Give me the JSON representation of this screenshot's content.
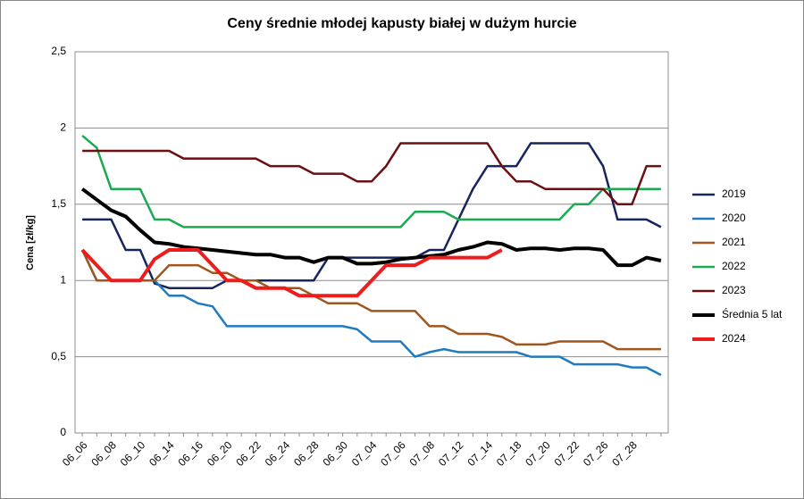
{
  "chart_data": {
    "type": "line",
    "title": "Ceny średnie młodej kapusty białej w dużym hurcie",
    "y_label": "Cena [zł/kg]",
    "categories": [
      "06_06",
      null,
      "06_08",
      null,
      "06_10",
      null,
      "06_14",
      null,
      "06_16",
      null,
      "06_20",
      null,
      "06_22",
      null,
      "06_24",
      null,
      "06_28",
      null,
      "06_30",
      null,
      "07_04",
      null,
      "07_06",
      null,
      "07_08",
      null,
      "07_12",
      null,
      "07_14",
      null,
      "07_18",
      null,
      "07_20",
      null,
      "07_22",
      null,
      "07_26",
      null,
      "07_28",
      null,
      null
    ],
    "ylim": [
      0,
      2.5
    ],
    "yticks": [
      0,
      {
        "value": 0.5,
        "label": "0,5"
      },
      1,
      {
        "value": 1.5,
        "label": "1,5"
      },
      2,
      {
        "value": 2.5,
        "label": "2,5"
      }
    ],
    "grid": true,
    "legend": "right",
    "series": [
      {
        "name": "2019",
        "color": "#17255e",
        "width": 2.5,
        "values": [
          1.4,
          1.4,
          1.4,
          1.2,
          1.2,
          0.98,
          0.95,
          0.95,
          0.95,
          0.95,
          1.0,
          1.0,
          1.0,
          1.0,
          1.0,
          1.0,
          1.0,
          1.15,
          1.15,
          1.15,
          1.15,
          1.15,
          1.15,
          1.15,
          1.2,
          1.2,
          1.4,
          1.6,
          1.75,
          1.75,
          1.75,
          1.9,
          1.9,
          1.9,
          1.9,
          1.9,
          1.75,
          1.4,
          1.4,
          1.4,
          1.35
        ]
      },
      {
        "name": "2020",
        "color": "#1f7bbf",
        "width": 2.5,
        "values": [
          1.2,
          1.0,
          1.0,
          1.0,
          1.0,
          1.0,
          0.9,
          0.9,
          0.85,
          0.83,
          0.7,
          0.7,
          0.7,
          0.7,
          0.7,
          0.7,
          0.7,
          0.7,
          0.7,
          0.68,
          0.6,
          0.6,
          0.6,
          0.5,
          0.53,
          0.55,
          0.53,
          0.53,
          0.53,
          0.53,
          0.53,
          0.5,
          0.5,
          0.5,
          0.45,
          0.45,
          0.45,
          0.45,
          0.43,
          0.43,
          0.38
        ]
      },
      {
        "name": "2021",
        "color": "#a0561c",
        "width": 2.5,
        "values": [
          1.2,
          1.0,
          1.0,
          1.0,
          1.0,
          1.0,
          1.1,
          1.1,
          1.1,
          1.05,
          1.05,
          1.0,
          1.0,
          0.95,
          0.95,
          0.95,
          0.9,
          0.85,
          0.85,
          0.85,
          0.8,
          0.8,
          0.8,
          0.8,
          0.7,
          0.7,
          0.65,
          0.65,
          0.65,
          0.63,
          0.58,
          0.58,
          0.58,
          0.6,
          0.6,
          0.6,
          0.6,
          0.55,
          0.55,
          0.55,
          0.55
        ]
      },
      {
        "name": "2022",
        "color": "#1aaa4f",
        "width": 2.5,
        "values": [
          1.95,
          1.87,
          1.6,
          1.6,
          1.6,
          1.4,
          1.4,
          1.35,
          1.35,
          1.35,
          1.35,
          1.35,
          1.35,
          1.35,
          1.35,
          1.35,
          1.35,
          1.35,
          1.35,
          1.35,
          1.35,
          1.35,
          1.35,
          1.45,
          1.45,
          1.45,
          1.4,
          1.4,
          1.4,
          1.4,
          1.4,
          1.4,
          1.4,
          1.4,
          1.5,
          1.5,
          1.6,
          1.6,
          1.6,
          1.6,
          1.6
        ]
      },
      {
        "name": "2023",
        "color": "#6b0f12",
        "width": 2.5,
        "values": [
          1.85,
          1.85,
          1.85,
          1.85,
          1.85,
          1.85,
          1.85,
          1.8,
          1.8,
          1.8,
          1.8,
          1.8,
          1.8,
          1.75,
          1.75,
          1.75,
          1.7,
          1.7,
          1.7,
          1.65,
          1.65,
          1.75,
          1.9,
          1.9,
          1.9,
          1.9,
          1.9,
          1.9,
          1.9,
          1.75,
          1.65,
          1.65,
          1.6,
          1.6,
          1.6,
          1.6,
          1.6,
          1.5,
          1.5,
          1.75,
          1.75
        ]
      },
      {
        "name": "Średnia 5 lat",
        "color": "#000000",
        "width": 4,
        "values": [
          1.6,
          1.53,
          1.46,
          1.42,
          1.33,
          1.25,
          1.24,
          1.22,
          1.21,
          1.2,
          1.19,
          1.18,
          1.17,
          1.17,
          1.15,
          1.15,
          1.12,
          1.15,
          1.15,
          1.11,
          1.11,
          1.12,
          1.14,
          1.15,
          1.16,
          1.17,
          1.2,
          1.22,
          1.25,
          1.24,
          1.2,
          1.21,
          1.21,
          1.2,
          1.21,
          1.21,
          1.2,
          1.1,
          1.1,
          1.15,
          1.13
        ]
      },
      {
        "name": "2024",
        "color": "#ee1c1c",
        "width": 4,
        "values": [
          1.2,
          1.1,
          1.0,
          1.0,
          1.0,
          1.14,
          1.2,
          1.2,
          1.2,
          1.1,
          1.0,
          1.0,
          0.95,
          0.95,
          0.95,
          0.9,
          0.9,
          0.9,
          0.9,
          0.9,
          1.0,
          1.1,
          1.1,
          1.1,
          1.15,
          1.15,
          1.15,
          1.15,
          1.15,
          1.2,
          null,
          null,
          null,
          null,
          null,
          null,
          null,
          null,
          null,
          null,
          null
        ]
      }
    ]
  }
}
